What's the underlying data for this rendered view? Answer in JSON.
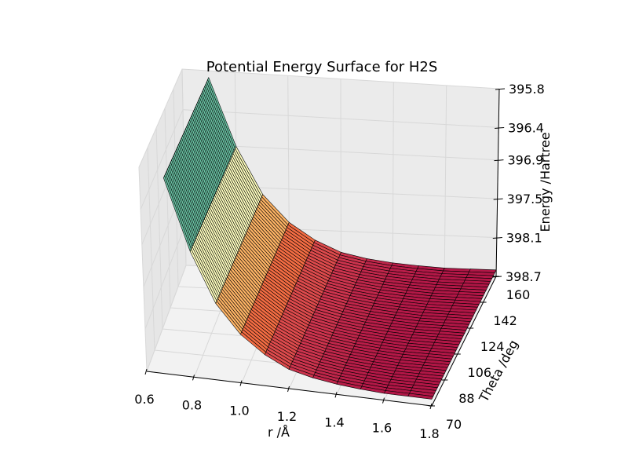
{
  "chart_data": {
    "type": "surface",
    "title": "Potential Energy Surface for H2S",
    "xlabel": "r /Å",
    "ylabel": "Theta /deg",
    "zlabel": "Energy /Hartree",
    "x_ticks": [
      "0.6",
      "0.8",
      "1.0",
      "1.2",
      "1.4",
      "1.6",
      "1.8"
    ],
    "y_ticks": [
      "70",
      "88",
      "106",
      "124",
      "142",
      "160"
    ],
    "z_ticks": [
      "395.8",
      "396.4",
      "396.9",
      "397.5",
      "398.1",
      "398.7"
    ],
    "xlim": [
      0.6,
      1.8
    ],
    "ylim": [
      70,
      160
    ],
    "zlim": [
      -398.7,
      -395.8
    ],
    "colormap": "Spectral",
    "grid": true,
    "r_values": [
      0.7,
      0.8,
      0.9,
      1.0,
      1.1,
      1.2,
      1.3,
      1.4,
      1.5,
      1.6,
      1.7,
      1.8
    ],
    "energy_at_r": [
      -395.9,
      -396.9,
      -397.6,
      -398.0,
      -398.25,
      -398.42,
      -398.5,
      -398.55,
      -398.58,
      -398.6,
      -398.6,
      -398.6
    ],
    "theta_samples": 46
  }
}
